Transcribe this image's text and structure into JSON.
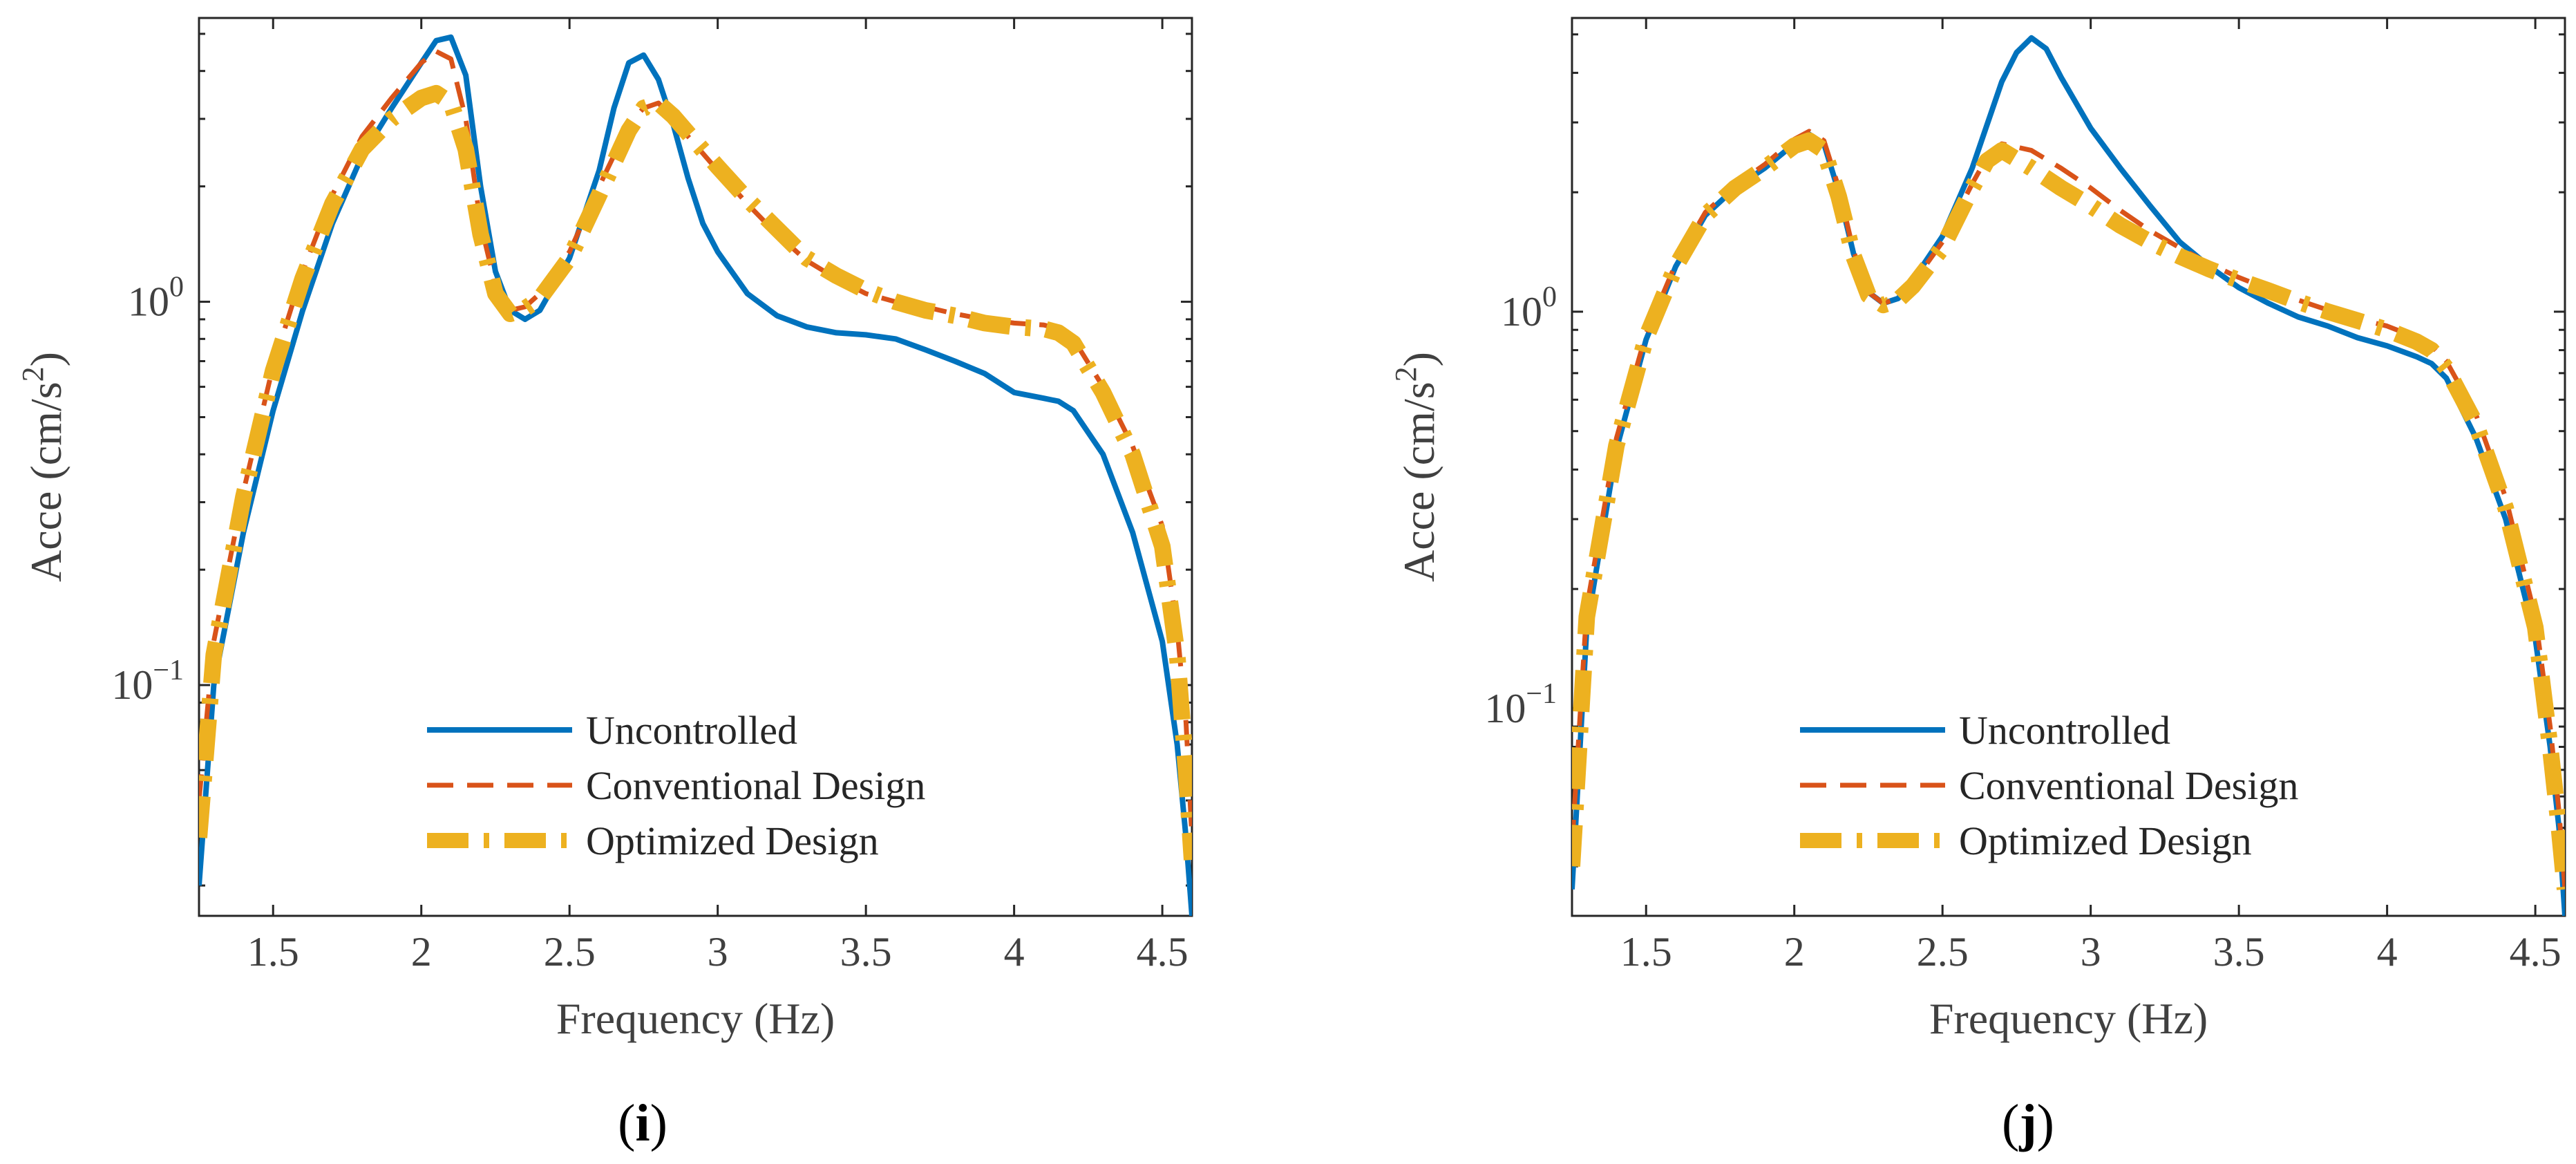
{
  "figure": {
    "panel_labels": [
      "(i)",
      "(j)"
    ]
  },
  "chart_data": [
    {
      "type": "line",
      "panel": "(i)",
      "xlabel": "Frequency (Hz)",
      "ylabel": "Acce (cm/s²)",
      "ylabel_parts": {
        "main": "Acce (cm/s",
        "sup": "2",
        "close": ")"
      },
      "yscale": "log",
      "xlim": [
        1.25,
        4.6
      ],
      "ylim": [
        0.025,
        5.5
      ],
      "xticks": [
        1.5,
        2,
        2.5,
        3,
        3.5,
        4,
        4.5
      ],
      "xtick_labels": [
        "1.5",
        "2",
        "2.5",
        "3",
        "3.5",
        "4",
        "4.5"
      ],
      "yticks": [
        {
          "value": 0.1,
          "base": "10",
          "exp": "−1"
        },
        {
          "value": 1,
          "base": "10",
          "exp": "0"
        }
      ],
      "legend": {
        "placement": "lower-center",
        "entries": [
          "Uncontrolled",
          "Conventional Design",
          "Optimized Design"
        ]
      },
      "series": [
        {
          "name": "Uncontrolled",
          "color": "#0072BD",
          "x": [
            1.25,
            1.3,
            1.4,
            1.5,
            1.6,
            1.7,
            1.8,
            1.9,
            2.0,
            2.05,
            2.1,
            2.15,
            2.2,
            2.25,
            2.3,
            2.35,
            2.4,
            2.5,
            2.6,
            2.65,
            2.7,
            2.75,
            2.8,
            2.85,
            2.9,
            2.95,
            3.0,
            3.1,
            3.2,
            3.3,
            3.4,
            3.5,
            3.6,
            3.7,
            3.8,
            3.9,
            4.0,
            4.1,
            4.15,
            4.2,
            4.3,
            4.4,
            4.5,
            4.55,
            4.58,
            4.6
          ],
          "y": [
            0.03,
            0.1,
            0.25,
            0.52,
            0.95,
            1.6,
            2.4,
            3.2,
            4.2,
            4.8,
            4.9,
            3.9,
            2.0,
            1.2,
            0.95,
            0.9,
            0.95,
            1.3,
            2.2,
            3.2,
            4.2,
            4.4,
            3.8,
            2.9,
            2.1,
            1.6,
            1.35,
            1.05,
            0.92,
            0.86,
            0.83,
            0.82,
            0.8,
            0.75,
            0.7,
            0.65,
            0.58,
            0.56,
            0.55,
            0.52,
            0.4,
            0.25,
            0.13,
            0.07,
            0.04,
            0.025
          ]
        },
        {
          "name": "Conventional Design",
          "color": "#D95319",
          "x": [
            1.25,
            1.3,
            1.4,
            1.5,
            1.6,
            1.7,
            1.8,
            1.9,
            2.0,
            2.05,
            2.1,
            2.15,
            2.2,
            2.25,
            2.3,
            2.35,
            2.4,
            2.5,
            2.6,
            2.7,
            2.75,
            2.8,
            2.85,
            2.9,
            3.0,
            3.1,
            3.2,
            3.3,
            3.4,
            3.5,
            3.6,
            3.7,
            3.8,
            3.9,
            4.0,
            4.1,
            4.15,
            4.2,
            4.3,
            4.4,
            4.5,
            4.55,
            4.58,
            4.6
          ],
          "y": [
            0.05,
            0.13,
            0.32,
            0.68,
            1.2,
            1.9,
            2.7,
            3.4,
            4.2,
            4.5,
            4.3,
            3.0,
            1.6,
            1.1,
            0.95,
            0.97,
            1.05,
            1.35,
            2.0,
            2.9,
            3.2,
            3.3,
            3.0,
            2.7,
            2.2,
            1.8,
            1.5,
            1.28,
            1.15,
            1.05,
            1.0,
            0.97,
            0.93,
            0.9,
            0.88,
            0.87,
            0.85,
            0.8,
            0.6,
            0.42,
            0.26,
            0.14,
            0.08,
            0.04
          ]
        },
        {
          "name": "Optimized Design",
          "color": "#EDB120",
          "x": [
            1.25,
            1.3,
            1.4,
            1.5,
            1.6,
            1.7,
            1.8,
            1.9,
            2.0,
            2.05,
            2.1,
            2.15,
            2.2,
            2.25,
            2.3,
            2.35,
            2.4,
            2.5,
            2.6,
            2.7,
            2.75,
            2.8,
            2.85,
            2.9,
            3.0,
            3.1,
            3.2,
            3.3,
            3.4,
            3.5,
            3.6,
            3.7,
            3.8,
            3.9,
            4.0,
            4.1,
            4.15,
            4.2,
            4.3,
            4.4,
            4.5,
            4.55,
            4.58,
            4.6
          ],
          "y": [
            0.04,
            0.12,
            0.31,
            0.66,
            1.15,
            1.8,
            2.5,
            3.0,
            3.4,
            3.5,
            3.3,
            2.5,
            1.5,
            1.05,
            0.93,
            0.96,
            1.02,
            1.3,
            1.9,
            2.8,
            3.2,
            3.3,
            3.05,
            2.75,
            2.25,
            1.85,
            1.55,
            1.3,
            1.17,
            1.07,
            1.0,
            0.95,
            0.92,
            0.88,
            0.86,
            0.85,
            0.83,
            0.78,
            0.58,
            0.4,
            0.23,
            0.12,
            0.06,
            0.035
          ]
        }
      ]
    },
    {
      "type": "line",
      "panel": "(j)",
      "xlabel": "Frequency (Hz)",
      "ylabel": "Acce (cm/s²)",
      "ylabel_parts": {
        "main": "Acce (cm/s",
        "sup": "2",
        "close": ")"
      },
      "yscale": "log",
      "xlim": [
        1.25,
        4.6
      ],
      "ylim": [
        0.03,
        5.5
      ],
      "xticks": [
        1.5,
        2,
        2.5,
        3,
        3.5,
        4,
        4.5
      ],
      "xtick_labels": [
        "1.5",
        "2",
        "2.5",
        "3",
        "3.5",
        "4",
        "4.5"
      ],
      "yticks": [
        {
          "value": 0.1,
          "base": "10",
          "exp": "−1"
        },
        {
          "value": 1,
          "base": "10",
          "exp": "0"
        }
      ],
      "legend": {
        "placement": "lower-center",
        "entries": [
          "Uncontrolled",
          "Conventional Design",
          "Optimized Design"
        ]
      },
      "series": [
        {
          "name": "Uncontrolled",
          "color": "#0072BD",
          "x": [
            1.25,
            1.3,
            1.4,
            1.5,
            1.6,
            1.7,
            1.8,
            1.9,
            2.0,
            2.05,
            2.1,
            2.15,
            2.2,
            2.25,
            2.3,
            2.35,
            2.4,
            2.5,
            2.6,
            2.7,
            2.75,
            2.8,
            2.85,
            2.9,
            3.0,
            3.1,
            3.2,
            3.3,
            3.4,
            3.5,
            3.6,
            3.7,
            3.8,
            3.9,
            4.0,
            4.1,
            4.15,
            4.2,
            4.3,
            4.4,
            4.5,
            4.55,
            4.58,
            4.6
          ],
          "y": [
            0.035,
            0.16,
            0.45,
            0.85,
            1.3,
            1.75,
            2.05,
            2.3,
            2.65,
            2.8,
            2.65,
            2.0,
            1.4,
            1.12,
            1.05,
            1.08,
            1.2,
            1.55,
            2.3,
            3.8,
            4.5,
            4.9,
            4.6,
            3.9,
            2.9,
            2.3,
            1.85,
            1.5,
            1.3,
            1.15,
            1.05,
            0.97,
            0.92,
            0.86,
            0.82,
            0.77,
            0.74,
            0.68,
            0.48,
            0.3,
            0.15,
            0.08,
            0.05,
            0.03
          ]
        },
        {
          "name": "Conventional Design",
          "color": "#D95319",
          "x": [
            1.25,
            1.3,
            1.4,
            1.5,
            1.6,
            1.7,
            1.8,
            1.9,
            2.0,
            2.05,
            2.1,
            2.15,
            2.2,
            2.25,
            2.3,
            2.35,
            2.4,
            2.5,
            2.6,
            2.65,
            2.7,
            2.8,
            2.9,
            3.0,
            3.1,
            3.2,
            3.3,
            3.4,
            3.5,
            3.6,
            3.7,
            3.8,
            3.9,
            4.0,
            4.1,
            4.15,
            4.2,
            4.3,
            4.4,
            4.5,
            4.55,
            4.58,
            4.6
          ],
          "y": [
            0.045,
            0.18,
            0.48,
            0.88,
            1.32,
            1.78,
            2.08,
            2.35,
            2.72,
            2.85,
            2.7,
            2.05,
            1.42,
            1.12,
            1.05,
            1.08,
            1.18,
            1.5,
            2.1,
            2.45,
            2.65,
            2.55,
            2.3,
            2.05,
            1.8,
            1.6,
            1.45,
            1.32,
            1.22,
            1.14,
            1.07,
            1.01,
            0.96,
            0.92,
            0.86,
            0.82,
            0.75,
            0.55,
            0.34,
            0.17,
            0.09,
            0.055,
            0.035
          ]
        },
        {
          "name": "Optimized Design",
          "color": "#EDB120",
          "x": [
            1.25,
            1.3,
            1.4,
            1.5,
            1.6,
            1.7,
            1.8,
            1.9,
            2.0,
            2.05,
            2.1,
            2.15,
            2.2,
            2.25,
            2.3,
            2.35,
            2.4,
            2.5,
            2.6,
            2.65,
            2.7,
            2.8,
            2.9,
            3.0,
            3.1,
            3.2,
            3.3,
            3.4,
            3.5,
            3.6,
            3.7,
            3.8,
            3.9,
            4.0,
            4.1,
            4.15,
            4.2,
            4.3,
            4.4,
            4.5,
            4.55,
            4.58,
            4.6
          ],
          "y": [
            0.04,
            0.17,
            0.46,
            0.86,
            1.3,
            1.75,
            2.05,
            2.3,
            2.62,
            2.7,
            2.55,
            1.95,
            1.38,
            1.1,
            1.04,
            1.07,
            1.16,
            1.45,
            2.05,
            2.4,
            2.55,
            2.3,
            2.05,
            1.85,
            1.65,
            1.5,
            1.38,
            1.28,
            1.2,
            1.13,
            1.06,
            1.0,
            0.95,
            0.9,
            0.84,
            0.8,
            0.72,
            0.52,
            0.32,
            0.16,
            0.08,
            0.05,
            0.035
          ]
        }
      ]
    }
  ]
}
